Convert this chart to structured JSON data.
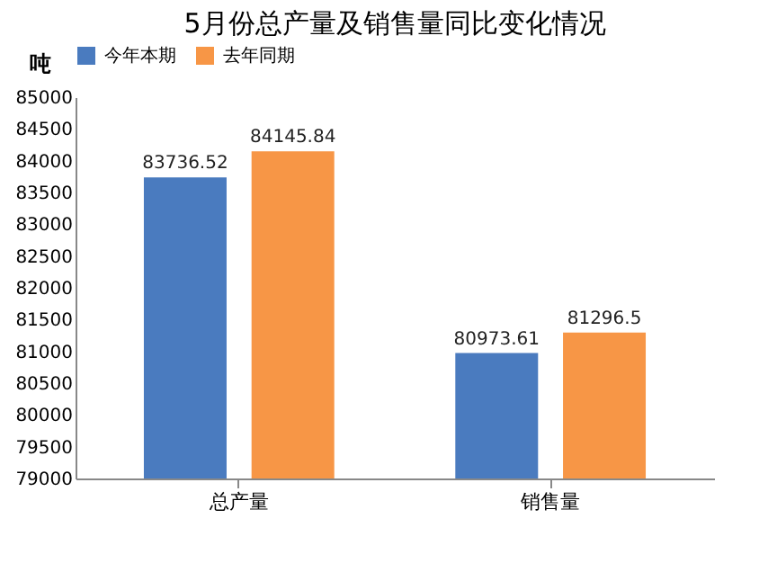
{
  "chart_data": {
    "type": "bar",
    "title": "5月份总产量及销售量同比变化情况",
    "ylabel": "吨",
    "categories": [
      "总产量",
      "销售量"
    ],
    "series": [
      {
        "name": "今年本期",
        "color": "#4a7bbf",
        "values": [
          83736.52,
          80973.61
        ]
      },
      {
        "name": "去年同期",
        "color": "#f79646",
        "values": [
          84145.84,
          81296.5
        ]
      }
    ],
    "ylim": [
      79000,
      85000
    ],
    "yticks": [
      79000,
      79500,
      80000,
      80500,
      81000,
      81500,
      82000,
      82500,
      83000,
      83500,
      84000,
      84500,
      85000
    ],
    "grid": false,
    "legend": "top",
    "data_labels": true
  }
}
